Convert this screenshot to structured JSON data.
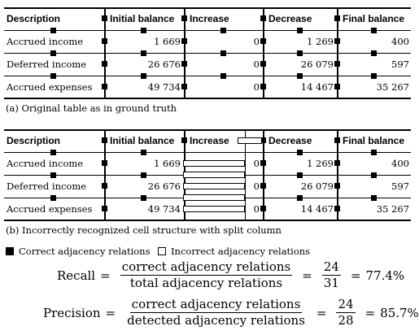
{
  "table_a": {
    "headers": [
      "Description",
      "Initial balance",
      "Increase",
      "Decrease",
      "Final balance"
    ],
    "rows": [
      [
        "Accrued income",
        "1 669",
        "0",
        "1 269",
        "400"
      ],
      [
        "Deferred income",
        "26 676",
        "0",
        "26 079",
        "597"
      ],
      [
        "Accrued expenses",
        "49 734",
        "0",
        "14 467",
        "35 267"
      ]
    ],
    "caption": "(a) Original table as in ground truth"
  },
  "table_b": {
    "headers": [
      "Description",
      "Initial balance",
      "Increase",
      "Decrease",
      "Final balance"
    ],
    "rows": [
      [
        "Accrued income",
        "1 669",
        "0",
        "1 269",
        "400"
      ],
      [
        "Deferred income",
        "26 676",
        "0",
        "26 079",
        "597"
      ],
      [
        "Accrued expenses",
        "49 734",
        "0",
        "14 467",
        "35 267"
      ]
    ],
    "caption": "(b) Incorrectly recognized cell structure with split column"
  },
  "legend": {
    "correct": "Correct adjacency relations",
    "incorrect": "Incorrect adjacency relations",
    "correct_color": "#000000",
    "incorrect_color": "#ffffff"
  },
  "recall": {
    "label": "Recall",
    "numerator": "correct adjacency relations",
    "denominator": "total adjacency relations",
    "value_num": "24",
    "value_den": "31",
    "result": "77.4%"
  },
  "precision": {
    "label": "Precision",
    "numerator": "correct adjacency relations",
    "denominator": "detected adjacency relations",
    "value_num": "24",
    "value_den": "28",
    "result": "85.7%"
  }
}
